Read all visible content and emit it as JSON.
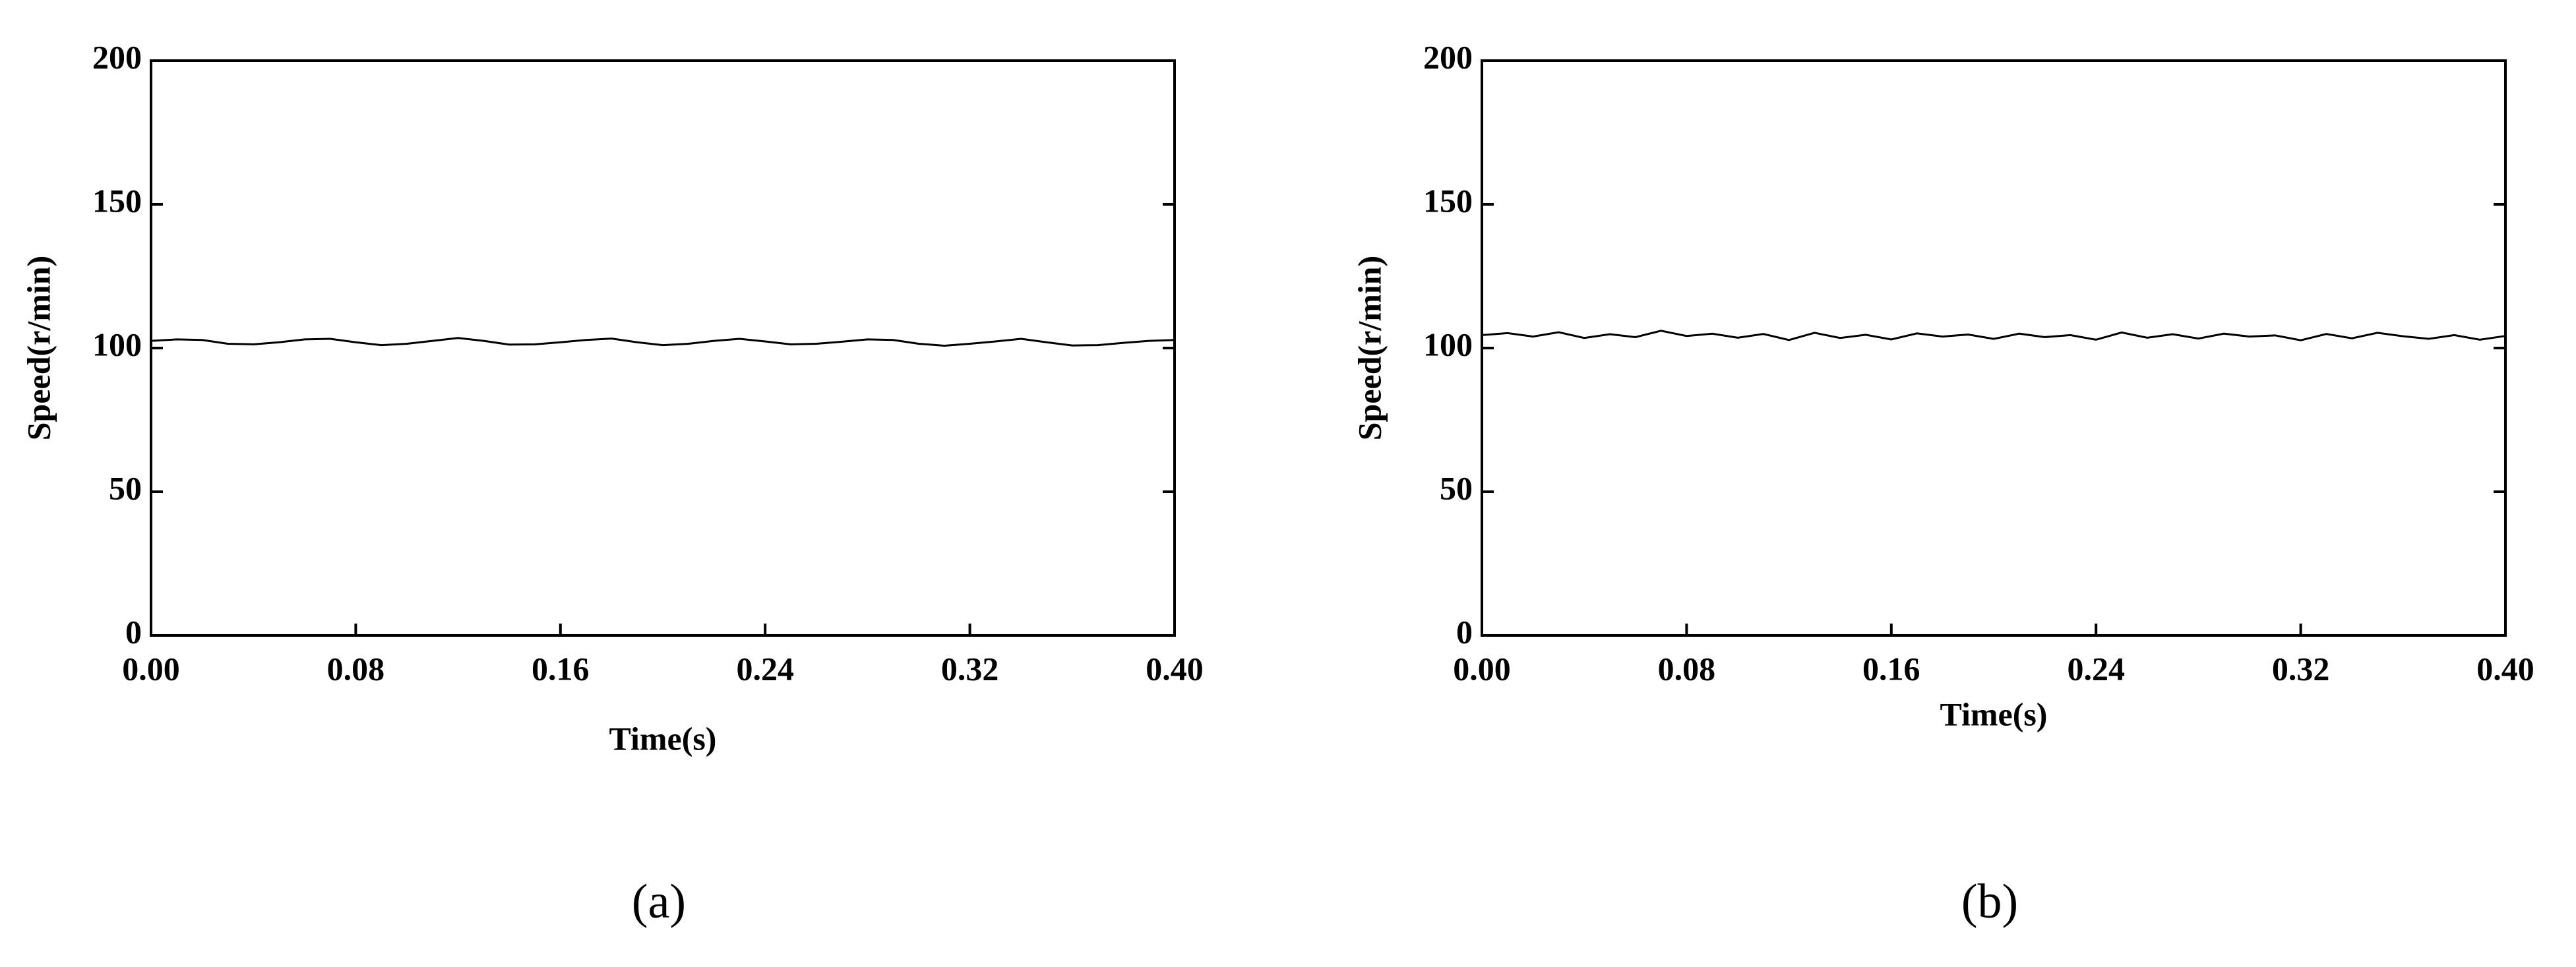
{
  "chart_data": [
    {
      "type": "line",
      "caption": "(a)",
      "xlabel": "Time(s)",
      "ylabel": "Speed(r/min)",
      "x": [
        0,
        0.01,
        0.02,
        0.03,
        0.04,
        0.05,
        0.06,
        0.07,
        0.08,
        0.09,
        0.1,
        0.11,
        0.12,
        0.13,
        0.14,
        0.15,
        0.16,
        0.17,
        0.18,
        0.19,
        0.2,
        0.21,
        0.22,
        0.23,
        0.24,
        0.25,
        0.26,
        0.27,
        0.28,
        0.29,
        0.3,
        0.31,
        0.32,
        0.33,
        0.34,
        0.35,
        0.36,
        0.37,
        0.38,
        0.39,
        0.4
      ],
      "series": [
        {
          "color": "#000000",
          "values": [
            102.5,
            103,
            102.8,
            101.5,
            101.3,
            102,
            103,
            103.2,
            102,
            101,
            101.5,
            102.5,
            103.5,
            102.5,
            101.2,
            101.3,
            102,
            102.8,
            103.3,
            102,
            101,
            101.5,
            102.5,
            103.2,
            102.3,
            101.3,
            101.5,
            102.2,
            103,
            102.8,
            101.5,
            100.8,
            101.5,
            102.3,
            103.2,
            102,
            100.9,
            101,
            101.8,
            102.5,
            102.8
          ]
        }
      ],
      "xlim": [
        0,
        0.4
      ],
      "ylim": [
        0,
        200
      ],
      "xticks": [
        {
          "value": 0,
          "label": "0.00"
        },
        0.08,
        0.16,
        0.24,
        0.32,
        {
          "value": 0.4,
          "label": "0.40"
        }
      ],
      "yticks": [
        0,
        50,
        100,
        150,
        200
      ]
    },
    {
      "type": "line",
      "caption": "(b)",
      "xlabel": "Time(s)",
      "ylabel": "Speed(r/min)",
      "x": [
        0,
        0.01,
        0.02,
        0.03,
        0.04,
        0.05,
        0.06,
        0.07,
        0.08,
        0.09,
        0.1,
        0.11,
        0.12,
        0.13,
        0.14,
        0.15,
        0.16,
        0.17,
        0.18,
        0.19,
        0.2,
        0.21,
        0.22,
        0.23,
        0.24,
        0.25,
        0.26,
        0.27,
        0.28,
        0.29,
        0.3,
        0.31,
        0.32,
        0.33,
        0.34,
        0.35,
        0.36,
        0.37,
        0.38,
        0.39,
        0.4
      ],
      "series": [
        {
          "color": "#000000",
          "values": [
            104.5,
            105.2,
            104,
            105.5,
            103.5,
            104.8,
            103.8,
            106,
            104.2,
            105,
            103.6,
            104.9,
            102.8,
            105.3,
            103.5,
            104.6,
            103,
            105.1,
            104,
            104.7,
            103.2,
            105,
            103.8,
            104.5,
            102.9,
            105.4,
            103.6,
            104.8,
            103.3,
            105,
            104,
            104.4,
            102.7,
            104.9,
            103.4,
            105.3,
            104.1,
            103.2,
            104.5,
            102.9,
            104.2
          ]
        }
      ],
      "xlim": [
        0,
        0.4
      ],
      "ylim": [
        0,
        200
      ],
      "xticks": [
        {
          "value": 0,
          "label": "0.00"
        },
        0.08,
        0.16,
        0.24,
        0.32,
        {
          "value": 0.4,
          "label": "0.40"
        }
      ],
      "yticks": [
        0,
        50,
        100,
        150,
        200
      ]
    }
  ]
}
